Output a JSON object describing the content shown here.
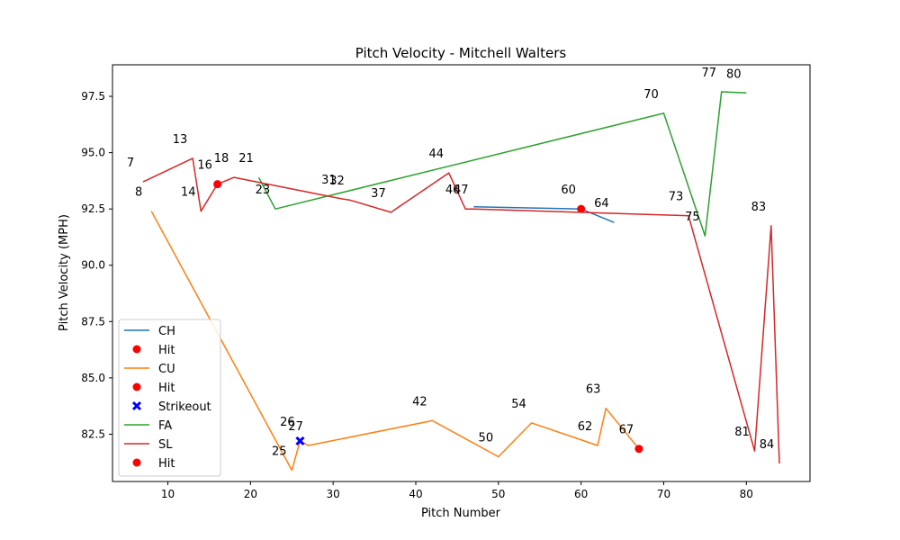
{
  "chart_data": {
    "type": "line",
    "title": "Pitch Velocity - Mitchell Walters",
    "xlabel": "Pitch Number",
    "ylabel": "Pitch Velocity (MPH)",
    "xlim": [
      3.3,
      87.7
    ],
    "ylim": [
      80.4,
      98.9
    ],
    "x_ticks": [
      10,
      20,
      30,
      40,
      50,
      60,
      70,
      80
    ],
    "y_ticks": [
      82.5,
      85.0,
      87.5,
      90.0,
      92.5,
      95.0,
      97.5
    ],
    "y_tick_labels": [
      "82.5",
      "85.0",
      "87.5",
      "90.0",
      "92.5",
      "95.0",
      "97.5"
    ],
    "grid": false,
    "legend_position": "lower-left",
    "series": [
      {
        "name": "CH",
        "color": "#1f77b4",
        "points": [
          [
            47,
            92.6
          ],
          [
            60,
            92.5
          ],
          [
            64,
            91.9
          ]
        ],
        "labels": [
          [
            60,
            "60"
          ],
          [
            64,
            "64"
          ]
        ],
        "events": [
          {
            "name": "Hit",
            "marker": "circle",
            "color": "#ff0000",
            "points": [
              [
                60,
                92.5
              ]
            ]
          }
        ]
      },
      {
        "name": "CU",
        "color": "#ff7f0e",
        "points": [
          [
            8,
            92.4
          ],
          [
            25,
            80.9
          ],
          [
            26,
            82.2
          ],
          [
            27,
            82.0
          ],
          [
            42,
            83.1
          ],
          [
            50,
            81.5
          ],
          [
            54,
            83.0
          ],
          [
            62,
            82.0
          ],
          [
            63,
            83.65
          ],
          [
            67,
            81.85
          ]
        ],
        "labels": [
          [
            8,
            "8"
          ],
          [
            25,
            "25"
          ],
          [
            26,
            "26"
          ],
          [
            27,
            "27"
          ],
          [
            42,
            "42"
          ],
          [
            50,
            "50"
          ],
          [
            54,
            "54"
          ],
          [
            62,
            "62"
          ],
          [
            63,
            "63"
          ],
          [
            67,
            "67"
          ]
        ],
        "events": [
          {
            "name": "Hit",
            "marker": "circle",
            "color": "#ff0000",
            "points": [
              [
                67,
                81.85
              ]
            ]
          },
          {
            "name": "Strikeout",
            "marker": "x",
            "color": "#0000ff",
            "points": [
              [
                26,
                82.2
              ]
            ]
          }
        ]
      },
      {
        "name": "FA",
        "color": "#2ca02c",
        "points": [
          [
            21,
            93.9
          ],
          [
            23,
            92.5
          ],
          [
            70,
            96.75
          ],
          [
            75,
            91.3
          ],
          [
            77,
            97.7
          ],
          [
            80,
            97.65
          ]
        ],
        "labels": [
          [
            21,
            "21"
          ],
          [
            23,
            "23"
          ],
          [
            70,
            "70"
          ],
          [
            75,
            "75"
          ],
          [
            77,
            "77"
          ],
          [
            80,
            "80"
          ]
        ],
        "events": []
      },
      {
        "name": "SL",
        "color": "#d62728",
        "points": [
          [
            7,
            93.7
          ],
          [
            13,
            94.75
          ],
          [
            14,
            92.4
          ],
          [
            16,
            93.6
          ],
          [
            18,
            93.9
          ],
          [
            31,
            92.95
          ],
          [
            32,
            92.9
          ],
          [
            37,
            92.35
          ],
          [
            44,
            94.1
          ],
          [
            46,
            92.5
          ],
          [
            47,
            92.5
          ],
          [
            73,
            92.2
          ],
          [
            81,
            81.75
          ],
          [
            83,
            91.75
          ],
          [
            84,
            81.2
          ]
        ],
        "labels": [
          [
            7,
            "7"
          ],
          [
            13,
            "13"
          ],
          [
            14,
            "14"
          ],
          [
            16,
            "16"
          ],
          [
            18,
            "18"
          ],
          [
            31,
            "31"
          ],
          [
            32,
            "32"
          ],
          [
            37,
            "37"
          ],
          [
            44,
            "44"
          ],
          [
            46,
            "46"
          ],
          [
            47,
            "47"
          ],
          [
            73,
            "73"
          ],
          [
            81,
            "81"
          ],
          [
            83,
            "83"
          ],
          [
            84,
            "84"
          ]
        ],
        "events": [
          {
            "name": "Hit",
            "marker": "circle",
            "color": "#ff0000",
            "points": [
              [
                16,
                93.6
              ]
            ]
          }
        ]
      }
    ]
  }
}
